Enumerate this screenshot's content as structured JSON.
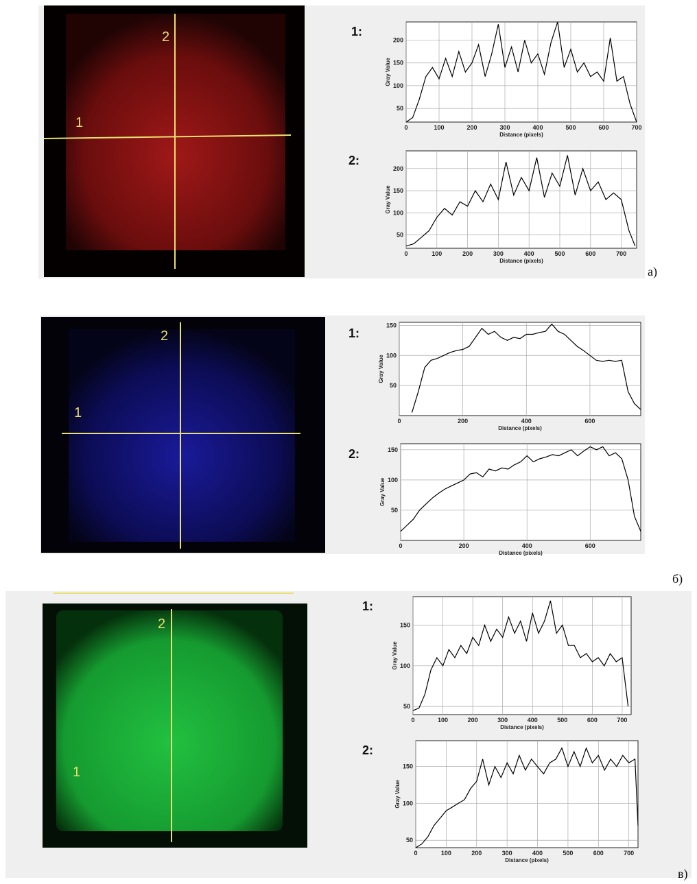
{
  "chart_data": [
    {
      "type": "line",
      "title": "1:",
      "y_label": "Gray Value",
      "x_label": "Distance (pixels)",
      "color": "#000000",
      "grid": true,
      "xlim": [
        0,
        700
      ],
      "ylim": [
        20,
        240
      ],
      "xticks": [
        0,
        100,
        200,
        300,
        400,
        500,
        600,
        700
      ],
      "yticks": [
        50,
        100,
        150,
        200
      ],
      "x": [
        0,
        20,
        40,
        60,
        80,
        100,
        120,
        140,
        160,
        180,
        200,
        220,
        240,
        260,
        280,
        300,
        320,
        340,
        360,
        380,
        400,
        420,
        440,
        460,
        480,
        500,
        520,
        540,
        560,
        580,
        600,
        620,
        640,
        660,
        680,
        700
      ],
      "values": [
        20,
        30,
        70,
        120,
        140,
        115,
        160,
        120,
        175,
        130,
        150,
        190,
        120,
        170,
        235,
        140,
        185,
        130,
        200,
        150,
        170,
        125,
        195,
        240,
        140,
        180,
        130,
        150,
        120,
        130,
        110,
        205,
        110,
        120,
        60,
        20
      ]
    },
    {
      "type": "line",
      "title": "2:",
      "y_label": "Gray Value",
      "x_label": "Distance (pixels)",
      "color": "#000000",
      "grid": true,
      "xlim": [
        0,
        750
      ],
      "ylim": [
        20,
        240
      ],
      "xticks": [
        0,
        100,
        200,
        300,
        400,
        500,
        600,
        700
      ],
      "yticks": [
        50,
        100,
        150,
        200
      ],
      "x": [
        0,
        25,
        50,
        75,
        100,
        125,
        150,
        175,
        200,
        225,
        250,
        275,
        300,
        325,
        350,
        375,
        400,
        425,
        450,
        475,
        500,
        525,
        550,
        575,
        600,
        625,
        650,
        675,
        700,
        725,
        745
      ],
      "values": [
        25,
        30,
        45,
        60,
        90,
        110,
        95,
        125,
        115,
        150,
        125,
        165,
        130,
        215,
        140,
        180,
        150,
        225,
        135,
        190,
        160,
        230,
        140,
        200,
        150,
        170,
        130,
        145,
        130,
        60,
        25
      ]
    },
    {
      "type": "line",
      "title": "1:",
      "y_label": "Gray Value",
      "x_label": "Distance (pixels)",
      "color": "#000000",
      "grid": true,
      "xlim": [
        0,
        760
      ],
      "ylim": [
        0,
        155
      ],
      "xticks": [
        0,
        200,
        400,
        600
      ],
      "yticks": [
        50,
        100,
        150
      ],
      "x": [
        40,
        60,
        80,
        100,
        120,
        140,
        160,
        180,
        200,
        220,
        240,
        260,
        280,
        300,
        320,
        340,
        360,
        380,
        400,
        420,
        440,
        460,
        480,
        500,
        520,
        540,
        560,
        580,
        600,
        620,
        640,
        660,
        680,
        700,
        720,
        740,
        760
      ],
      "values": [
        5,
        40,
        80,
        92,
        95,
        100,
        105,
        108,
        110,
        115,
        130,
        145,
        135,
        140,
        130,
        125,
        130,
        128,
        135,
        135,
        138,
        140,
        152,
        140,
        135,
        125,
        115,
        108,
        100,
        92,
        90,
        92,
        90,
        92,
        40,
        20,
        10
      ]
    },
    {
      "type": "line",
      "title": "2:",
      "y_label": "Gray Value",
      "x_label": "Distance (pixels)",
      "color": "#000000",
      "grid": true,
      "xlim": [
        0,
        760
      ],
      "ylim": [
        0,
        160
      ],
      "xticks": [
        0,
        200,
        400,
        600
      ],
      "yticks": [
        50,
        100,
        150
      ],
      "x": [
        0,
        20,
        40,
        60,
        80,
        100,
        120,
        140,
        160,
        180,
        200,
        220,
        240,
        260,
        280,
        300,
        320,
        340,
        360,
        380,
        400,
        420,
        440,
        460,
        480,
        500,
        520,
        540,
        560,
        580,
        600,
        620,
        640,
        660,
        680,
        700,
        720,
        740,
        760
      ],
      "values": [
        15,
        25,
        35,
        50,
        60,
        70,
        78,
        85,
        90,
        95,
        100,
        110,
        112,
        105,
        118,
        115,
        120,
        118,
        125,
        130,
        140,
        130,
        135,
        138,
        142,
        140,
        145,
        150,
        140,
        148,
        155,
        150,
        155,
        140,
        145,
        135,
        100,
        40,
        15
      ]
    },
    {
      "type": "line",
      "title": "1:",
      "y_label": "Gray Value",
      "x_label": "Distance (pixels)",
      "color": "#000000",
      "grid": true,
      "xlim": [
        0,
        730
      ],
      "ylim": [
        40,
        185
      ],
      "xticks": [
        0,
        100,
        200,
        300,
        400,
        500,
        600,
        700
      ],
      "yticks": [
        50,
        100,
        150
      ],
      "x": [
        0,
        20,
        40,
        60,
        80,
        100,
        120,
        140,
        160,
        180,
        200,
        220,
        240,
        260,
        280,
        300,
        320,
        340,
        360,
        380,
        400,
        420,
        440,
        460,
        480,
        500,
        520,
        540,
        560,
        580,
        600,
        620,
        640,
        660,
        680,
        700,
        720
      ],
      "values": [
        45,
        48,
        65,
        95,
        110,
        100,
        120,
        110,
        125,
        115,
        135,
        125,
        150,
        130,
        145,
        135,
        160,
        140,
        155,
        130,
        165,
        140,
        155,
        180,
        140,
        150,
        125,
        125,
        110,
        115,
        105,
        110,
        100,
        115,
        105,
        110,
        50
      ]
    },
    {
      "type": "line",
      "title": "2:",
      "y_label": "Gray Value",
      "x_label": "Distance (pixels)",
      "color": "#000000",
      "grid": true,
      "xlim": [
        0,
        730
      ],
      "ylim": [
        40,
        185
      ],
      "xticks": [
        0,
        100,
        200,
        300,
        400,
        500,
        600,
        700
      ],
      "yticks": [
        50,
        100,
        150
      ],
      "x": [
        0,
        20,
        40,
        60,
        80,
        100,
        120,
        140,
        160,
        180,
        200,
        220,
        240,
        260,
        280,
        300,
        320,
        340,
        360,
        380,
        400,
        420,
        440,
        460,
        480,
        500,
        520,
        540,
        560,
        580,
        600,
        620,
        640,
        660,
        680,
        700,
        720,
        730
      ],
      "values": [
        40,
        45,
        55,
        70,
        80,
        90,
        95,
        100,
        105,
        120,
        130,
        160,
        125,
        150,
        135,
        155,
        140,
        165,
        145,
        160,
        150,
        140,
        155,
        160,
        175,
        150,
        170,
        150,
        175,
        155,
        165,
        145,
        160,
        150,
        165,
        155,
        160,
        70
      ]
    }
  ],
  "panels": [
    {
      "label": "a)",
      "line_labels": [
        "1",
        "2"
      ]
    },
    {
      "label": "б)",
      "line_labels": [
        "1",
        "2"
      ]
    },
    {
      "label": "в)",
      "line_labels": [
        "1",
        "2"
      ]
    }
  ]
}
